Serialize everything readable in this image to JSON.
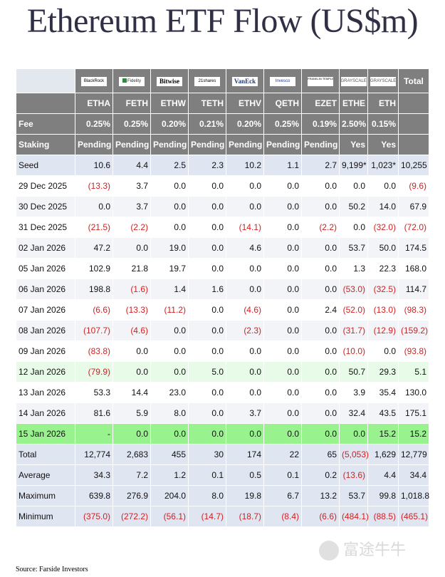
{
  "title": "Ethereum ETF Flow (US$m)",
  "logos": [
    "BlackRock",
    "Fidelity",
    "Bitwise",
    "21shares",
    "VanEck",
    "Invesco",
    "FRANKLIN TEMPLETON",
    "GRAYSCALE",
    "GRAYSCALE"
  ],
  "total_header": "Total",
  "tickers": [
    "ETHA",
    "FETH",
    "ETHW",
    "TETH",
    "ETHV",
    "QETH",
    "EZET",
    "ETHE",
    "ETH"
  ],
  "fee": {
    "label": "Fee",
    "values": [
      "0.25%",
      "0.25%",
      "0.20%",
      "0.21%",
      "0.20%",
      "0.25%",
      "0.19%",
      "2.50%",
      "0.15%"
    ]
  },
  "staking": {
    "label": "Staking",
    "values": [
      "Pending",
      "Pending",
      "Pending",
      "Pending",
      "Pending",
      "Pending",
      "Pending",
      "Yes",
      "Yes"
    ]
  },
  "rows": [
    {
      "label": "Seed",
      "values": [
        "10.6",
        "4.4",
        "2.5",
        "2.3",
        "10.2",
        "1.1",
        "2.7",
        "9,199*",
        "1,023*",
        "10,255"
      ]
    },
    {
      "label": "29 Dec 2025",
      "values": [
        "(13.3)",
        "3.7",
        "0.0",
        "0.0",
        "0.0",
        "0.0",
        "0.0",
        "0.0",
        "0.0",
        "(9.6)"
      ]
    },
    {
      "label": "30 Dec 2025",
      "values": [
        "0.0",
        "3.7",
        "0.0",
        "0.0",
        "0.0",
        "0.0",
        "0.0",
        "50.2",
        "14.0",
        "67.9"
      ]
    },
    {
      "label": "31 Dec 2025",
      "values": [
        "(21.5)",
        "(2.2)",
        "0.0",
        "0.0",
        "(14.1)",
        "0.0",
        "(2.2)",
        "0.0",
        "(32.0)",
        "(72.0)"
      ]
    },
    {
      "label": "02 Jan 2026",
      "values": [
        "47.2",
        "0.0",
        "19.0",
        "0.0",
        "4.6",
        "0.0",
        "0.0",
        "53.7",
        "50.0",
        "174.5"
      ]
    },
    {
      "label": "05 Jan 2026",
      "values": [
        "102.9",
        "21.8",
        "19.7",
        "0.0",
        "0.0",
        "0.0",
        "0.0",
        "1.3",
        "22.3",
        "168.0"
      ]
    },
    {
      "label": "06 Jan 2026",
      "values": [
        "198.8",
        "(1.6)",
        "1.4",
        "1.6",
        "0.0",
        "0.0",
        "0.0",
        "(53.0)",
        "(32.5)",
        "114.7"
      ]
    },
    {
      "label": "07 Jan 2026",
      "values": [
        "(6.6)",
        "(13.3)",
        "(11.2)",
        "0.0",
        "(4.6)",
        "0.0",
        "2.4",
        "(52.0)",
        "(13.0)",
        "(98.3)"
      ]
    },
    {
      "label": "08 Jan 2026",
      "values": [
        "(107.7)",
        "(4.6)",
        "0.0",
        "0.0",
        "(2.3)",
        "0.0",
        "0.0",
        "(31.7)",
        "(12.9)",
        "(159.2)"
      ]
    },
    {
      "label": "09 Jan 2026",
      "values": [
        "(83.8)",
        "0.0",
        "0.0",
        "0.0",
        "0.0",
        "0.0",
        "0.0",
        "(10.0)",
        "0.0",
        "(93.8)"
      ]
    },
    {
      "label": "12 Jan 2026",
      "values": [
        "(79.9)",
        "0.0",
        "0.0",
        "5.0",
        "0.0",
        "0.0",
        "0.0",
        "50.7",
        "29.3",
        "5.1"
      ]
    },
    {
      "label": "13 Jan 2026",
      "values": [
        "53.3",
        "14.4",
        "23.0",
        "0.0",
        "0.0",
        "0.0",
        "0.0",
        "3.9",
        "35.4",
        "130.0"
      ]
    },
    {
      "label": "14 Jan 2026",
      "values": [
        "81.6",
        "5.9",
        "8.0",
        "0.0",
        "3.7",
        "0.0",
        "0.0",
        "32.4",
        "43.5",
        "175.1"
      ]
    },
    {
      "label": "15 Jan 2026",
      "values": [
        "-",
        "0.0",
        "0.0",
        "0.0",
        "0.0",
        "0.0",
        "0.0",
        "0.0",
        "15.2",
        "15.2"
      ]
    },
    {
      "label": "Total",
      "values": [
        "12,774",
        "2,683",
        "455",
        "30",
        "174",
        "22",
        "65",
        "(5,053)",
        "1,629",
        "12,779"
      ]
    },
    {
      "label": "Average",
      "values": [
        "34.3",
        "7.2",
        "1.2",
        "0.1",
        "0.5",
        "0.1",
        "0.2",
        "(13.6)",
        "4.4",
        "34.4"
      ]
    },
    {
      "label": "Maximum",
      "values": [
        "639.8",
        "276.9",
        "204.0",
        "8.0",
        "19.8",
        "6.7",
        "13.2",
        "53.7",
        "99.8",
        "1,018.8"
      ]
    },
    {
      "label": "Minimum",
      "values": [
        "(375.0)",
        "(272.2)",
        "(56.1)",
        "(14.7)",
        "(18.7)",
        "(8.4)",
        "(6.6)",
        "(484.1)",
        "(88.5)",
        "(465.1)"
      ]
    }
  ],
  "row_styles": [
    "blue",
    "white",
    "light",
    "white",
    "light",
    "white",
    "light",
    "white",
    "light",
    "white",
    "mint",
    "white",
    "light",
    "green",
    "blue",
    "blue",
    "blue",
    "blue"
  ],
  "source": "Source: Farside Investors",
  "watermark": "富途牛牛",
  "colors": {
    "header_bg": "#7f7f7f",
    "negative": "#d21f1f",
    "highlight_green": "#98f28d",
    "highlight_mint": "#e8fae8",
    "summary_blue": "#dfe5f1"
  }
}
